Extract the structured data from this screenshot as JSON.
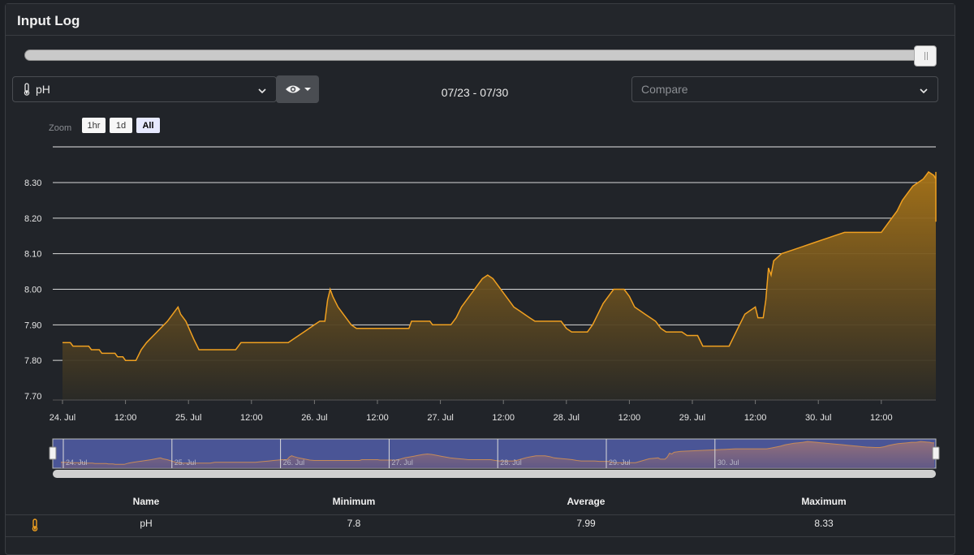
{
  "panel": {
    "title": "Input Log"
  },
  "time_slider": {
    "position_fraction": 1.0
  },
  "sensor_select": {
    "value": "pH",
    "icon": "thermometer-icon"
  },
  "visibility_button": {
    "icon": "eye-icon"
  },
  "date_range": "07/23 - 07/30",
  "compare_select": {
    "placeholder": "Compare"
  },
  "zoom": {
    "label": "Zoom",
    "options": [
      "1hr",
      "1d",
      "All"
    ],
    "active": "All"
  },
  "colors": {
    "accent": "#f0a020",
    "background": "#212429",
    "navigator": "#4a5596"
  },
  "chart_data": {
    "type": "area",
    "series": [
      {
        "name": "pH"
      }
    ],
    "ylim": [
      7.7,
      8.35
    ],
    "yticks": [
      "7.70",
      "7.80",
      "7.90",
      "8.00",
      "8.10",
      "8.20",
      "8.30"
    ],
    "xticks": [
      "24. Jul",
      "12:00",
      "25. Jul",
      "12:00",
      "26. Jul",
      "12:00",
      "27. Jul",
      "12:00",
      "28. Jul",
      "12:00",
      "29. Jul",
      "12:00",
      "30. Jul",
      "12:00"
    ],
    "x_range_hours": [
      0,
      168
    ],
    "navigator_ticks": [
      "24. Jul",
      "25. Jul",
      "26. Jul",
      "27. Jul",
      "28. Jul",
      "29. Jul",
      "30. Jul"
    ],
    "points": [
      [
        0,
        7.85
      ],
      [
        1.5,
        7.85
      ],
      [
        2,
        7.84
      ],
      [
        5,
        7.84
      ],
      [
        5.5,
        7.83
      ],
      [
        7,
        7.83
      ],
      [
        7.5,
        7.82
      ],
      [
        10,
        7.82
      ],
      [
        10.5,
        7.81
      ],
      [
        11.5,
        7.81
      ],
      [
        12,
        7.8
      ],
      [
        14,
        7.8
      ],
      [
        15,
        7.83
      ],
      [
        16,
        7.85
      ],
      [
        18,
        7.88
      ],
      [
        20,
        7.91
      ],
      [
        21,
        7.93
      ],
      [
        22,
        7.95
      ],
      [
        22.5,
        7.93
      ],
      [
        23.5,
        7.91
      ],
      [
        25,
        7.86
      ],
      [
        26,
        7.83
      ],
      [
        33,
        7.83
      ],
      [
        34,
        7.85
      ],
      [
        43,
        7.85
      ],
      [
        44,
        7.86
      ],
      [
        45,
        7.87
      ],
      [
        46,
        7.88
      ],
      [
        47,
        7.89
      ],
      [
        48,
        7.9
      ],
      [
        49,
        7.91
      ],
      [
        50,
        7.91
      ],
      [
        50.5,
        7.97
      ],
      [
        51,
        8.0
      ],
      [
        51.5,
        7.98
      ],
      [
        52.5,
        7.95
      ],
      [
        54,
        7.92
      ],
      [
        55,
        7.9
      ],
      [
        56,
        7.89
      ],
      [
        66,
        7.89
      ],
      [
        66.5,
        7.91
      ],
      [
        70,
        7.91
      ],
      [
        70.5,
        7.9
      ],
      [
        74,
        7.9
      ],
      [
        75,
        7.92
      ],
      [
        76,
        7.95
      ],
      [
        77,
        7.97
      ],
      [
        78,
        7.99
      ],
      [
        79,
        8.01
      ],
      [
        80,
        8.03
      ],
      [
        81,
        8.04
      ],
      [
        82,
        8.03
      ],
      [
        83,
        8.01
      ],
      [
        84,
        7.99
      ],
      [
        85,
        7.97
      ],
      [
        86,
        7.95
      ],
      [
        87,
        7.94
      ],
      [
        88,
        7.93
      ],
      [
        89,
        7.92
      ],
      [
        90,
        7.91
      ],
      [
        95,
        7.91
      ],
      [
        96,
        7.89
      ],
      [
        97,
        7.88
      ],
      [
        100,
        7.88
      ],
      [
        101,
        7.9
      ],
      [
        102,
        7.93
      ],
      [
        103,
        7.96
      ],
      [
        104,
        7.98
      ],
      [
        105,
        8.0
      ],
      [
        107,
        8.0
      ],
      [
        108,
        7.98
      ],
      [
        109,
        7.95
      ],
      [
        110,
        7.94
      ],
      [
        111,
        7.93
      ],
      [
        112,
        7.92
      ],
      [
        113,
        7.91
      ],
      [
        114,
        7.89
      ],
      [
        115,
        7.88
      ],
      [
        118,
        7.88
      ],
      [
        119,
        7.87
      ],
      [
        121,
        7.87
      ],
      [
        122,
        7.84
      ],
      [
        127,
        7.84
      ],
      [
        128,
        7.87
      ],
      [
        129,
        7.9
      ],
      [
        130,
        7.93
      ],
      [
        131,
        7.94
      ],
      [
        132,
        7.95
      ],
      [
        132.5,
        7.92
      ],
      [
        133.5,
        7.92
      ],
      [
        134,
        7.97
      ],
      [
        134.5,
        8.06
      ],
      [
        135,
        8.04
      ],
      [
        135.5,
        8.08
      ],
      [
        137,
        8.1
      ],
      [
        139,
        8.11
      ],
      [
        141,
        8.12
      ],
      [
        143,
        8.13
      ],
      [
        145,
        8.14
      ],
      [
        147,
        8.15
      ],
      [
        149,
        8.16
      ],
      [
        156,
        8.16
      ],
      [
        157,
        8.18
      ],
      [
        158,
        8.2
      ],
      [
        159,
        8.22
      ],
      [
        160,
        8.25
      ],
      [
        161,
        8.27
      ],
      [
        162,
        8.29
      ],
      [
        163,
        8.3
      ],
      [
        164,
        8.31
      ],
      [
        164.5,
        8.32
      ],
      [
        165,
        8.33
      ],
      [
        166,
        8.32
      ],
      [
        167,
        8.31
      ],
      [
        168,
        8.3
      ],
      [
        169,
        8.29
      ],
      [
        170,
        8.28
      ],
      [
        171,
        8.27
      ],
      [
        172,
        8.26
      ],
      [
        173,
        8.25
      ],
      [
        174,
        8.24
      ],
      [
        175,
        8.23
      ],
      [
        176,
        8.22
      ],
      [
        177,
        8.21
      ],
      [
        178,
        8.2
      ],
      [
        180,
        8.19
      ],
      [
        181,
        8.19
      ],
      [
        182,
        8.21
      ],
      [
        183,
        8.24
      ],
      [
        184,
        8.26
      ],
      [
        185,
        8.28
      ],
      [
        186,
        8.29
      ],
      [
        187,
        8.3
      ],
      [
        188,
        8.31
      ],
      [
        189,
        8.31
      ],
      [
        190,
        8.33
      ],
      [
        191,
        8.32
      ],
      [
        192,
        8.31
      ],
      [
        192.5,
        8.3
      ],
      [
        193,
        8.3
      ]
    ]
  },
  "stats": {
    "headers": {
      "name": "Name",
      "minimum": "Minimum",
      "average": "Average",
      "maximum": "Maximum"
    },
    "row": {
      "icon": "thermometer-icon",
      "name": "pH",
      "minimum": "7.8",
      "average": "7.99",
      "maximum": "8.33"
    }
  }
}
